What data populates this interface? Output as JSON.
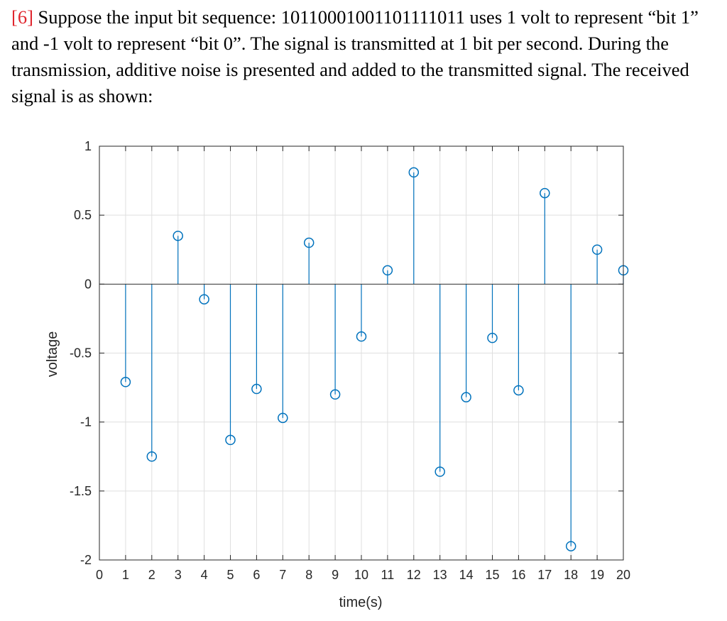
{
  "question": {
    "number": "[6]",
    "text": "Suppose the input bit sequence: 10110001001101111011 uses 1 volt to represent “bit 1” and -1 volt to represent “bit 0”. The signal is transmitted at 1 bit per second. During the transmission, additive noise is presented and added to the transmitted signal. The received signal is as shown:"
  },
  "chart_data": {
    "type": "stem",
    "title": "",
    "xlabel": "time(s)",
    "ylabel": "voltage",
    "xlim": [
      0,
      20
    ],
    "ylim": [
      -2,
      1
    ],
    "grid": true,
    "xticks": [
      0,
      1,
      2,
      3,
      4,
      5,
      6,
      7,
      8,
      9,
      10,
      11,
      12,
      13,
      14,
      15,
      16,
      17,
      18,
      19,
      20
    ],
    "xtick_labels": [
      "0",
      "1",
      "2",
      "3",
      "4",
      "5",
      "6",
      "7",
      "8",
      "9",
      "10",
      "11",
      "12",
      "13",
      "14",
      "15",
      "16",
      "17",
      "18",
      "19",
      "20"
    ],
    "yticks": [
      -2,
      -1.5,
      -1,
      -0.5,
      0,
      0.5,
      1
    ],
    "ytick_labels": [
      "-2",
      "-1.5",
      "-1",
      "-0.5",
      "0",
      "0.5",
      "1"
    ],
    "x": [
      1,
      2,
      3,
      4,
      5,
      6,
      7,
      8,
      9,
      10,
      11,
      12,
      13,
      14,
      15,
      16,
      17,
      18,
      19,
      20
    ],
    "values": [
      -0.71,
      -1.25,
      0.35,
      -0.11,
      -1.13,
      -0.76,
      -0.97,
      0.3,
      -0.8,
      -0.38,
      0.1,
      0.81,
      -1.36,
      -0.82,
      -0.39,
      -0.77,
      0.66,
      -1.9,
      0.25,
      0.1
    ],
    "color": "#0072BD"
  }
}
